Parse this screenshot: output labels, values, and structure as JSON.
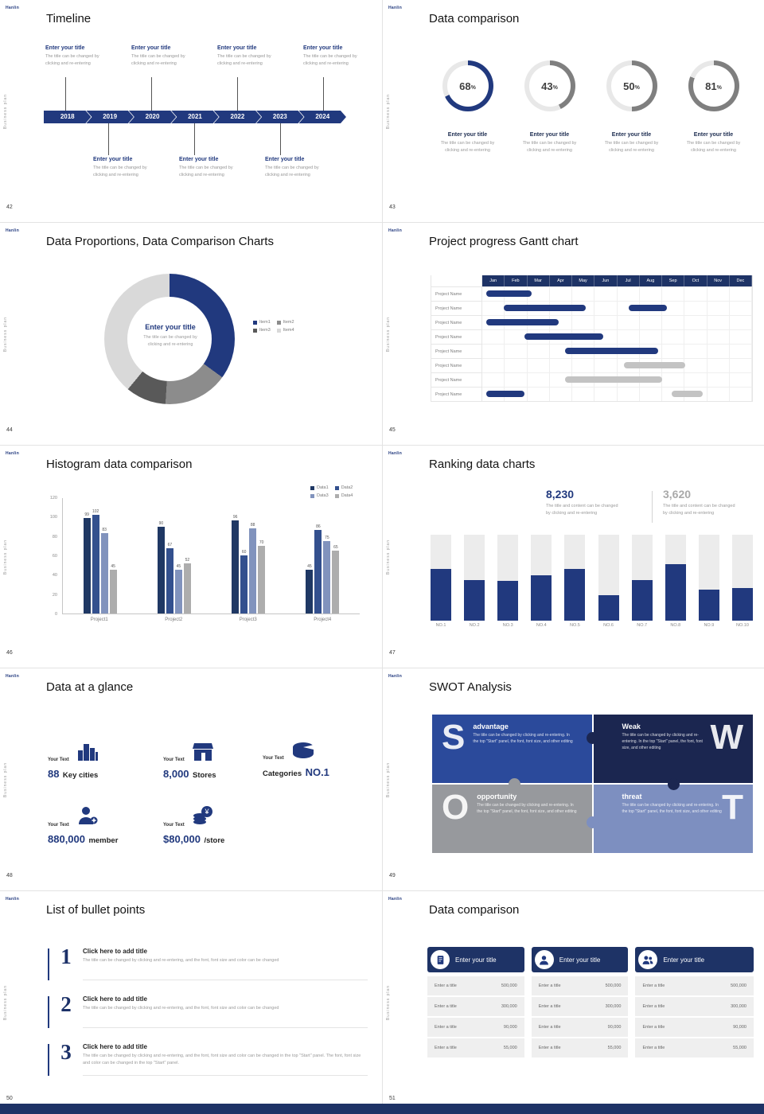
{
  "page": {
    "brand": "Hanlin",
    "side_label": "Business plan",
    "accent": "#21397e",
    "navy_dark": "#1e3366"
  },
  "slide42": {
    "page_no": "42",
    "title": "Timeline",
    "entry_title": "Enter your title",
    "entry_desc1": "The title can be changed by",
    "entry_desc2": "clicking and re-entering",
    "years": [
      "2018",
      "2019",
      "2020",
      "2021",
      "2022",
      "2023",
      "2024"
    ]
  },
  "slide43": {
    "page_no": "43",
    "title": "Data comparison",
    "entry_title": "Enter your title",
    "entry_desc1": "The title can be changed by",
    "entry_desc2": "clicking and re-entering",
    "rings": [
      {
        "percent": 68,
        "color": "#21397e"
      },
      {
        "percent": 43,
        "color": "#7f7f7f"
      },
      {
        "percent": 50,
        "color": "#7f7f7f"
      },
      {
        "percent": 81,
        "color": "#7f7f7f"
      }
    ]
  },
  "slide44": {
    "page_no": "44",
    "title": "Data Proportions, Data Comparison Charts",
    "center_title": "Enter your title",
    "center_desc1": "The title can be changed by",
    "center_desc2": "clicking and re-entering",
    "segments": [
      {
        "label": "Item1",
        "value": 35,
        "color": "#21397e"
      },
      {
        "label": "Item2",
        "value": 16,
        "color": "#8c8c8c"
      },
      {
        "label": "Item3",
        "value": 10,
        "color": "#595959"
      },
      {
        "label": "Item4",
        "value": 39,
        "color": "#d9d9d9"
      }
    ]
  },
  "slide45": {
    "page_no": "45",
    "title": "Project progress Gantt chart",
    "row_label": "Project Name",
    "months": [
      "Jan",
      "Feb",
      "Mar",
      "Apr",
      "May",
      "Jun",
      "Jul",
      "Aug",
      "Sep",
      "Oct",
      "Nov",
      "Dec"
    ],
    "rows": [
      {
        "bars": [
          [
            0.2,
            2.2,
            "b"
          ]
        ]
      },
      {
        "bars": [
          [
            1.0,
            4.6,
            "b"
          ],
          [
            6.5,
            8.2,
            "b"
          ]
        ]
      },
      {
        "bars": [
          [
            0.2,
            3.4,
            "b"
          ]
        ]
      },
      {
        "bars": [
          [
            1.9,
            5.4,
            "b"
          ]
        ]
      },
      {
        "bars": [
          [
            3.7,
            7.8,
            "b"
          ]
        ]
      },
      {
        "bars": [
          [
            6.3,
            9.0,
            "g"
          ]
        ]
      },
      {
        "bars": [
          [
            3.7,
            8.0,
            "g"
          ]
        ]
      },
      {
        "bars": [
          [
            0.2,
            1.9,
            "b"
          ],
          [
            8.4,
            9.8,
            "g"
          ]
        ]
      }
    ]
  },
  "slide46": {
    "page_no": "46",
    "title": "Histogram data comparison",
    "categories": [
      "Project1",
      "Project2",
      "Project3",
      "Project4"
    ],
    "series": [
      {
        "name": "Data1",
        "color": "#1f3864",
        "values": [
          99,
          90,
          96,
          45
        ]
      },
      {
        "name": "Data2",
        "color": "#33508e",
        "values": [
          102,
          67,
          60,
          86
        ]
      },
      {
        "name": "Data3",
        "color": "#8193bd",
        "values": [
          83,
          45,
          88,
          75
        ]
      },
      {
        "name": "Data4",
        "color": "#adadad",
        "values": [
          45,
          52,
          70,
          65
        ]
      }
    ],
    "y_ticks": [
      0,
      20,
      40,
      60,
      80,
      100,
      120
    ],
    "ymax": 120
  },
  "slide47": {
    "page_no": "47",
    "title": "Ranking data charts",
    "stat1": {
      "value": "8,230",
      "desc1": "The title and content can be changed",
      "desc2": "by clicking and re-entering"
    },
    "stat2": {
      "value": "3,620",
      "desc1": "The title and content can be changed",
      "desc2": "by clicking and re-entering"
    },
    "bars": {
      "labels": [
        "NO.1",
        "NO.2",
        "NO.3",
        "NO.4",
        "NO.5",
        "NO.6",
        "NO.7",
        "NO.8",
        "NO.9",
        "NO.10"
      ],
      "heights": [
        60,
        47,
        46,
        53,
        60,
        30,
        47,
        66,
        36,
        38
      ]
    }
  },
  "slide48": {
    "page_no": "48",
    "title": "Data at a glance",
    "label": "Your Text",
    "items": [
      {
        "value": "88",
        "unit": "Key cities"
      },
      {
        "value": "8,000",
        "unit": "Stores"
      },
      {
        "prefix": "Categories",
        "value": "NO.1",
        "unit": ""
      },
      {
        "value": "880,000",
        "unit": "member"
      },
      {
        "value": "$80,000",
        "unit": "/store"
      }
    ]
  },
  "slide49": {
    "page_no": "49",
    "title": "SWOT Analysis",
    "quads": [
      {
        "letter": "S",
        "qtitle": "advantage",
        "desc": "The title can be changed by clicking and re-entering. In the top \"Start\" panel, the font, font size, and other editing",
        "color": "#2b4a9b"
      },
      {
        "letter": "W",
        "qtitle": "Weak",
        "desc": "The title can be changed by clicking and re-entering. In the top \"Start\" panel, the font, font size, and other editing",
        "color": "#1b2650"
      },
      {
        "letter": "O",
        "qtitle": "opportunity",
        "desc": "The title can be changed by clicking and re-entering. In the top \"Start\" panel, the font, font size, and other editing",
        "color": "#97999d"
      },
      {
        "letter": "T",
        "qtitle": "threat",
        "desc": "The title can be changed by clicking and re-entering. In the top \"Start\" panel, the font, font size, and other editing",
        "color": "#7d8fc0"
      }
    ]
  },
  "slide50": {
    "page_no": "50",
    "title": "List of bullet points",
    "items": [
      {
        "num": "1",
        "title": "Click here to add title",
        "desc": "The title can be changed by clicking and re-entering, and the font, font size and color can be changed"
      },
      {
        "num": "2",
        "title": "Click here to add title",
        "desc": "The title can be changed by clicking and re-entering, and the font, font size and color can be changed"
      },
      {
        "num": "3",
        "title": "Click here to add title",
        "desc": "The title can be changed by clicking and re-entering, and the font, font size and color can be changed in the top \"Start\" panel. The font, font size and color can be changed in the top \"Start\" panel."
      }
    ]
  },
  "slide51": {
    "page_no": "51",
    "title": "Data comparison",
    "cards": [
      {
        "header": "Enter your title",
        "rows": [
          [
            "Enter a title",
            "500,000"
          ],
          [
            "Enter a title",
            "300,000"
          ],
          [
            "Enter a title",
            "90,000"
          ],
          [
            "Enter a title",
            "55,000"
          ]
        ]
      },
      {
        "header": "Enter your title",
        "rows": [
          [
            "Enter a title",
            "500,000"
          ],
          [
            "Enter a title",
            "300,000"
          ],
          [
            "Enter a title",
            "90,000"
          ],
          [
            "Enter a title",
            "55,000"
          ]
        ]
      },
      {
        "header": "Enter your title",
        "rows": [
          [
            "Enter a title",
            "500,000"
          ],
          [
            "Enter a title",
            "300,000"
          ],
          [
            "Enter a title",
            "90,000"
          ],
          [
            "Enter a title",
            "55,000"
          ]
        ]
      }
    ]
  }
}
